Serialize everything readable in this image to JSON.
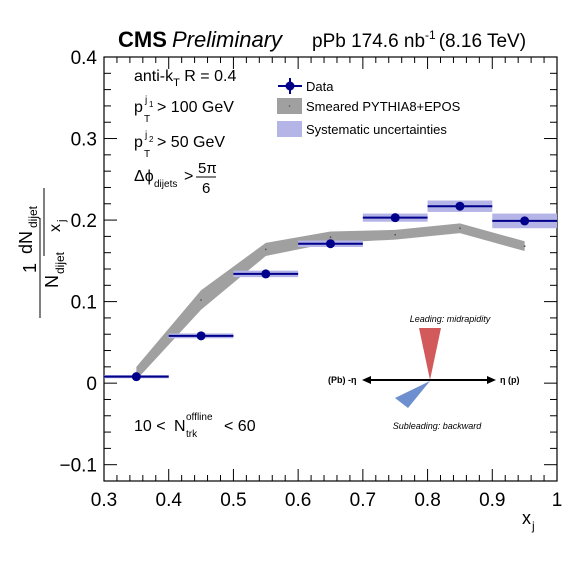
{
  "header": {
    "experiment": "CMS",
    "status": "Preliminary",
    "lumi_base": "pPb 174.6 nb",
    "lumi_exp": "-1",
    "lumi_energy": "(8.16 TeV)"
  },
  "cuts": {
    "algo_pre": "anti-k",
    "algo_sub": "T",
    "algo_post": " R = 0.4",
    "pt1_base": "p",
    "pt1_sup": "j",
    "pt1_sup_sub": "1",
    "pt1_sub": "T",
    "pt1_value": "> 100 GeV",
    "pt2_base": "p",
    "pt2_sup": "j",
    "pt2_sup_sub": "2",
    "pt2_sub": "T",
    "pt2_value": "> 50 GeV",
    "dphi_base": "Δϕ",
    "dphi_sub": "dijets",
    "dphi_gt": ">",
    "dphi_num": "5π",
    "dphi_den": "6"
  },
  "multiplicity": {
    "lower": "10 <",
    "N": "N",
    "N_sup": "offline",
    "N_sub": "trk",
    "upper": "< 60"
  },
  "inset": {
    "leading_label": "Leading: midrapidity",
    "subleading_label": "Subleading: backward",
    "left_label": "(Pb) -η",
    "right_label": "η (p)",
    "leading_color": "#d35a5a",
    "subleading_color": "#6e8fcf"
  },
  "ylabel": {
    "outer_num": "1",
    "outer_den_N": "N",
    "outer_den_sub": "dijet",
    "inner_num_dN": "dN",
    "inner_num_sub": "dijet",
    "inner_den_x": "x",
    "inner_den_sub": "j"
  },
  "xlabel": {
    "x": "x",
    "sub": "j"
  },
  "chart_data": {
    "type": "scatter",
    "xlim": [
      0.3,
      1.0
    ],
    "ylim": [
      -0.12,
      0.4
    ],
    "xticks": [
      "0.3",
      "0.4",
      "0.5",
      "0.6",
      "0.7",
      "0.8",
      "0.9",
      "1"
    ],
    "xtick_values": [
      0.3,
      0.4,
      0.5,
      0.6,
      0.7,
      0.8,
      0.9,
      1.0
    ],
    "yticks": [
      "−0.1",
      "0",
      "0.1",
      "0.2",
      "0.3",
      "0.4"
    ],
    "ytick_values": [
      -0.1,
      0.0,
      0.1,
      0.2,
      0.3,
      0.4
    ],
    "grid": false,
    "legend": {
      "placement": "top-right",
      "entries": [
        "Data",
        "Smeared PYTHIA8+EPOS",
        "Systematic uncertainties"
      ]
    },
    "colors": {
      "data": "#00008b",
      "syst": "#b4b4e6",
      "model": "#a0a0a0"
    },
    "series": [
      {
        "name": "Data",
        "x": [
          0.35,
          0.45,
          0.55,
          0.65,
          0.75,
          0.85,
          0.95
        ],
        "xerr": [
          0.05,
          0.05,
          0.05,
          0.05,
          0.05,
          0.05,
          0.05
        ],
        "y": [
          0.008,
          0.058,
          0.134,
          0.171,
          0.203,
          0.217,
          0.199
        ],
        "syst": [
          0.002,
          0.003,
          0.004,
          0.004,
          0.005,
          0.007,
          0.009
        ]
      },
      {
        "name": "Smeared PYTHIA8+EPOS",
        "x": [
          0.35,
          0.45,
          0.55,
          0.65,
          0.75,
          0.85,
          0.95
        ],
        "y": [
          0.012,
          0.102,
          0.164,
          0.179,
          0.182,
          0.19,
          0.168
        ],
        "width": [
          0.008,
          0.012,
          0.008,
          0.007,
          0.006,
          0.006,
          0.006
        ]
      }
    ]
  }
}
